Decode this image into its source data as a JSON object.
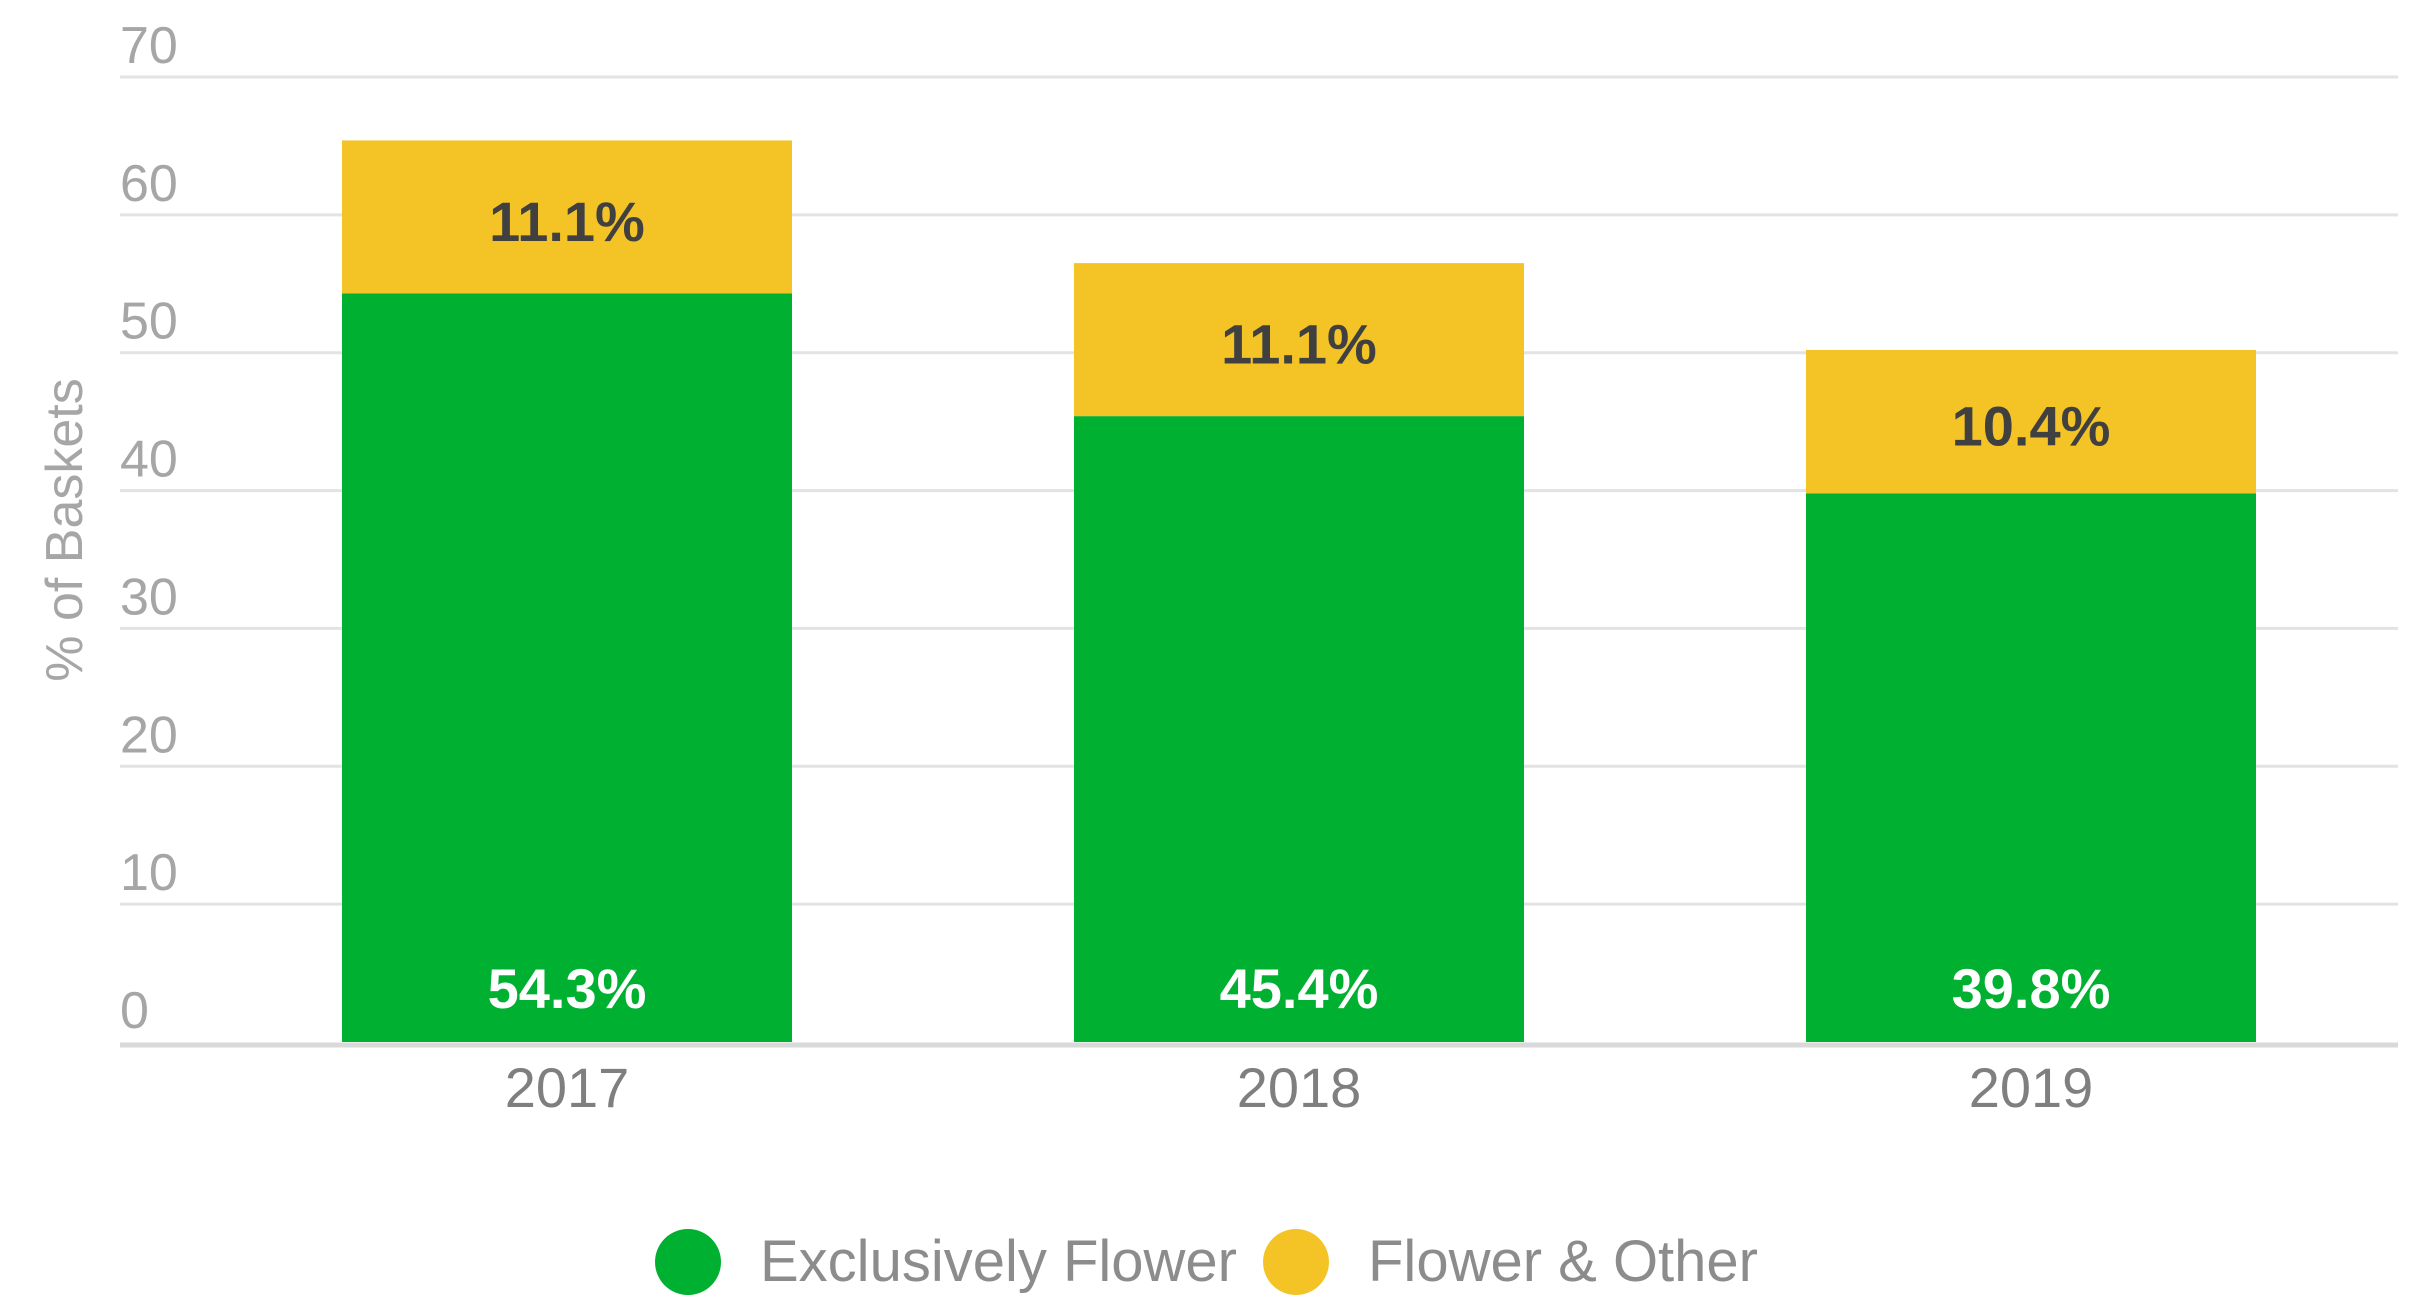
{
  "chart_data": {
    "type": "bar",
    "stacked": true,
    "categories": [
      "2017",
      "2018",
      "2019"
    ],
    "series": [
      {
        "name": "Exclusively Flower",
        "values": [
          54.3,
          45.4,
          39.8
        ],
        "labels": [
          "54.3%",
          "45.4%",
          "39.8%"
        ],
        "color": "#00b031",
        "label_color": "#ffffff"
      },
      {
        "name": "Flower & Other",
        "values": [
          11.1,
          11.1,
          10.4
        ],
        "labels": [
          "11.1%",
          "11.1%",
          "10.4%"
        ],
        "color": "#f4c427",
        "label_color": "#404040"
      }
    ],
    "ylabel": "% of Baskets",
    "ylim": [
      0,
      70
    ],
    "yticks": [
      "0",
      "10",
      "20",
      "30",
      "40",
      "50",
      "60",
      "70"
    ],
    "grid": true,
    "legend_position": "bottom"
  }
}
